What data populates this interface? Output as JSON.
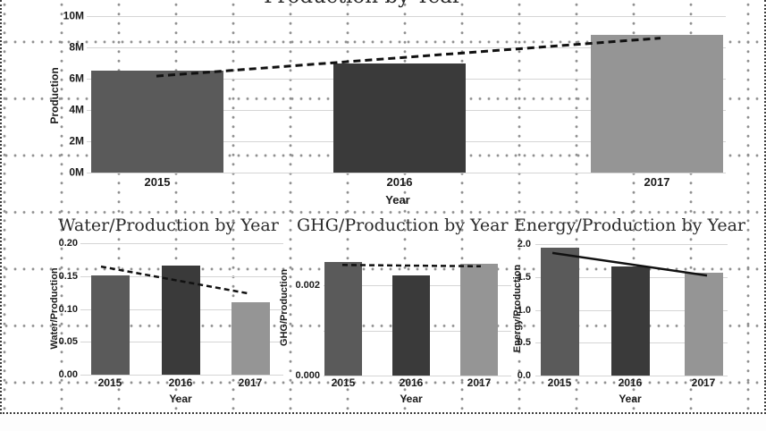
{
  "canvas": {
    "border_color": "#3c3c3c",
    "dot_color": "#8e8e8e",
    "gridline_color": "#d5d5d5",
    "text_color": "#1b1b1b",
    "trend_color": "#111111",
    "bar_color_2015": "#5a5a5a",
    "bar_color_2016": "#3a3a3a",
    "bar_color_2017": "#959595"
  },
  "chart_data": [
    {
      "id": "production",
      "type": "bar",
      "title": "Production by Year",
      "title_note": "title partially cut off by top edge of screenshot",
      "xlabel": "Year",
      "ylabel": "Production",
      "categories": [
        "2015",
        "2016",
        "2017"
      ],
      "values": [
        6500000,
        6950000,
        8800000
      ],
      "bar_colors": [
        "#5a5a5a",
        "#3a3a3a",
        "#959595"
      ],
      "ylim": [
        0,
        10000000
      ],
      "yticks": [
        {
          "value": 0,
          "label": "0M"
        },
        {
          "value": 2000000,
          "label": "2M"
        },
        {
          "value": 4000000,
          "label": "4M"
        },
        {
          "value": 6000000,
          "label": "6M"
        },
        {
          "value": 8000000,
          "label": "8M"
        },
        {
          "value": 10000000,
          "label": "10M"
        }
      ],
      "grid": true,
      "legend": "none",
      "trendline": {
        "style": "dashed",
        "start_value": 6150000,
        "end_value": 8550000
      }
    },
    {
      "id": "water-intensity",
      "type": "bar",
      "title": "Water/Production by Year",
      "xlabel": "Year",
      "ylabel": "Water/Production",
      "categories": [
        "2015",
        "2016",
        "2017"
      ],
      "values": [
        0.151,
        0.166,
        0.11
      ],
      "bar_colors": [
        "#5a5a5a",
        "#3a3a3a",
        "#959595"
      ],
      "ylim": [
        0,
        0.205
      ],
      "yticks": [
        {
          "value": 0,
          "label": "0.00"
        },
        {
          "value": 0.05,
          "label": "0.05"
        },
        {
          "value": 0.1,
          "label": "0.10"
        },
        {
          "value": 0.15,
          "label": "0.15"
        },
        {
          "value": 0.2,
          "label": "0.20"
        }
      ],
      "grid": true,
      "legend": "none",
      "trendline": {
        "style": "dashed",
        "start_value": 0.162,
        "end_value": 0.123
      }
    },
    {
      "id": "ghg-intensity",
      "type": "bar",
      "title": "GHG/Production by Year",
      "xlabel": "Year",
      "ylabel": "GHG/Production",
      "categories": [
        "2015",
        "2016",
        "2017"
      ],
      "values": [
        0.00251,
        0.00222,
        0.00248
      ],
      "bar_colors": [
        "#5a5a5a",
        "#3a3a3a",
        "#959595"
      ],
      "ylim": [
        0,
        0.003
      ],
      "yticks": [
        {
          "value": 0,
          "label": "0.000"
        },
        {
          "value": 0.002,
          "label": "0.002"
        }
      ],
      "grid_values": [
        0,
        0.001,
        0.002
      ],
      "grid": true,
      "legend": "none",
      "trendline": {
        "style": "dashed",
        "start_value": 0.00245,
        "end_value": 0.00242
      }
    },
    {
      "id": "energy-intensity",
      "type": "bar",
      "title": "Energy/Production by Year",
      "xlabel": "Year",
      "ylabel": "Energy/Production",
      "categories": [
        "2015",
        "2016",
        "2017"
      ],
      "values": [
        1.95,
        1.66,
        1.56
      ],
      "bar_colors": [
        "#5a5a5a",
        "#3a3a3a",
        "#959595"
      ],
      "ylim": [
        0,
        2.05
      ],
      "yticks": [
        {
          "value": 0,
          "label": "0.0"
        },
        {
          "value": 0.5,
          "label": "0.5"
        },
        {
          "value": 1,
          "label": "1.0"
        },
        {
          "value": 1.5,
          "label": "1.5"
        },
        {
          "value": 2,
          "label": "2.0"
        }
      ],
      "grid": true,
      "legend": "none",
      "trendline": {
        "style": "solid",
        "start_value": 1.85,
        "end_value": 1.53
      }
    }
  ]
}
